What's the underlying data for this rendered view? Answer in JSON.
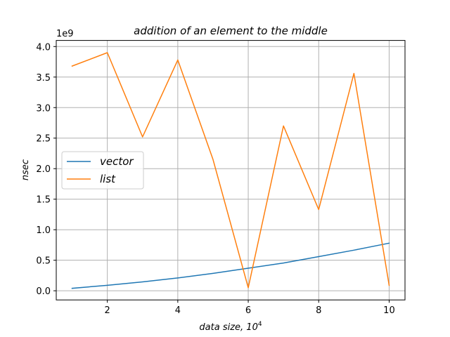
{
  "chart_data": {
    "type": "line",
    "title": "addition of an element to the middle",
    "xlabel": "data size, 10",
    "xlabel_sup": "4",
    "ylabel": "nsec",
    "y_offset_label": "1e9",
    "x": [
      1,
      2,
      3,
      4,
      5,
      6,
      7,
      8,
      9,
      10
    ],
    "xlim": [
      0.55,
      10.45
    ],
    "ylim": [
      -0.15,
      4.1
    ],
    "xticks": [
      2,
      4,
      6,
      8,
      10
    ],
    "xtick_labels": [
      "2",
      "4",
      "6",
      "8",
      "10"
    ],
    "yticks": [
      0.0,
      0.5,
      1.0,
      1.5,
      2.0,
      2.5,
      3.0,
      3.5,
      4.0
    ],
    "ytick_labels": [
      "0.0",
      "0.5",
      "1.0",
      "1.5",
      "2.0",
      "2.5",
      "3.0",
      "3.5",
      "4.0"
    ],
    "grid": true,
    "legend_position": "center-left",
    "series": [
      {
        "name": "vector",
        "color": "#1f77b4",
        "values": [
          0.04,
          0.09,
          0.145,
          0.21,
          0.285,
          0.37,
          0.455,
          0.56,
          0.665,
          0.78
        ]
      },
      {
        "name": "list",
        "color": "#ff7f0e",
        "values": [
          3.68,
          3.9,
          2.52,
          3.78,
          2.15,
          0.05,
          2.7,
          1.33,
          3.56,
          0.09
        ]
      }
    ]
  }
}
